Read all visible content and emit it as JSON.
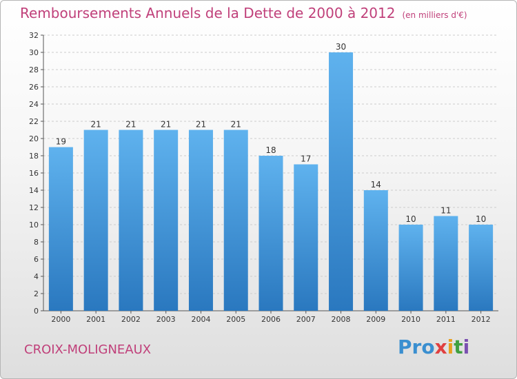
{
  "chart_data": {
    "type": "bar",
    "title": "Remboursements Annuels de la Dette de 2000 à 2012",
    "subtitle": "(en milliers d'€)",
    "categories": [
      "2000",
      "2001",
      "2002",
      "2003",
      "2004",
      "2005",
      "2006",
      "2007",
      "2008",
      "2009",
      "2010",
      "2011",
      "2012"
    ],
    "values": [
      19,
      21,
      21,
      21,
      21,
      21,
      18,
      17,
      30,
      14,
      10,
      11,
      10
    ],
    "xlabel": "",
    "ylabel": "",
    "ylim": [
      0,
      32
    ],
    "yticks": [
      0,
      2,
      4,
      6,
      8,
      10,
      12,
      14,
      16,
      18,
      20,
      22,
      24,
      26,
      28,
      30,
      32
    ],
    "grid": true,
    "legend": "none",
    "bar_color": "#4a9fe0"
  },
  "footer": {
    "place": "CROIX-MOLIGNEAUX",
    "logo": [
      "Pro",
      "x",
      "i",
      "t",
      "i"
    ]
  },
  "colors": {
    "title": "#c0407a",
    "bar_top": "#5fb2ee",
    "bar_bottom": "#2a78bf"
  }
}
